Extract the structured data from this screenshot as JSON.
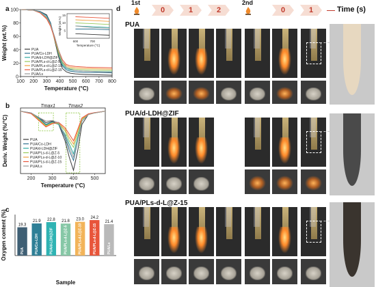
{
  "panel_labels": {
    "a": "a",
    "b": "b",
    "c": "c",
    "d": "d"
  },
  "panel_a": {
    "ylabel": "Weight (wt.%)",
    "xlabel": "Temperature (°C)",
    "yticks": [
      "0",
      "20",
      "40",
      "60",
      "80",
      "100"
    ],
    "xticks": [
      "100",
      "200",
      "300",
      "400",
      "500",
      "600",
      "700",
      "800"
    ],
    "legend": [
      "PUA",
      "PUA/Co-LDH",
      "PUA/d-LDH@ZIF",
      "PUA/PLs-d-L@Z-5",
      "PUA/PLs-d-L@Z-10",
      "PUA/PLs-d-L@Z-15",
      "PUA/Ls"
    ],
    "inset": {
      "ylabel": "Weight (wt.%)",
      "xlabel": "Temperature (°C)",
      "xticks": [
        "600",
        "700"
      ],
      "yticks": [
        "5",
        "10",
        "15"
      ]
    }
  },
  "panel_b": {
    "ylabel": "Deriv. Weight (%/°C)",
    "xlabel": "Temperature (°C)",
    "xticks": [
      "200",
      "300",
      "400",
      "500"
    ],
    "annotations": [
      "Tmax1",
      "Tmax2"
    ],
    "legend": [
      "PUA",
      "PUA/Co-LDH",
      "PUA/d-LDH@ZIF",
      "PUA/PLs-d-L@Z-5",
      "PUA/PLs-d-L@Z-10",
      "PUA/PLs-d-L@Z-15",
      "PUA/Ls"
    ]
  },
  "panel_d": {
    "round1": "1st",
    "round2": "2nd",
    "times1": [
      "0",
      "1",
      "2"
    ],
    "times2": [
      "0",
      "1"
    ],
    "time_label": "Time (s)",
    "rows": [
      "PUA",
      "PUA/d-LDH@ZIF",
      "PUA/PLs-d-L@Z-15"
    ]
  },
  "chart_data": [
    {
      "type": "line",
      "title": "",
      "xlabel": "Temperature (°C)",
      "ylabel": "Weight (wt.%)",
      "xlim": [
        100,
        800
      ],
      "ylim": [
        0,
        100
      ],
      "x": [
        100,
        200,
        250,
        300,
        330,
        360,
        390,
        420,
        450,
        480,
        520,
        600,
        700,
        800
      ],
      "series": [
        {
          "name": "PUA",
          "color": "#3a3a3a",
          "values": [
            100,
            99,
            97,
            92,
            80,
            55,
            30,
            12,
            7,
            5,
            4,
            3,
            2.5,
            2
          ]
        },
        {
          "name": "PUA/Co-LDH",
          "color": "#2e6f8e",
          "values": [
            100,
            99,
            97,
            91,
            80,
            58,
            34,
            16,
            10,
            8,
            7,
            6,
            6,
            5.5
          ]
        },
        {
          "name": "PUA/d-LDH@ZIF",
          "color": "#2aa8a0",
          "values": [
            100,
            99,
            96,
            89,
            78,
            57,
            35,
            18,
            12,
            10,
            9,
            8,
            7.5,
            7
          ]
        },
        {
          "name": "PUA/PLs-d-L@Z-5",
          "color": "#98c95a",
          "values": [
            100,
            99,
            96,
            88,
            77,
            56,
            36,
            20,
            14,
            12,
            11,
            10,
            9.5,
            9
          ]
        },
        {
          "name": "PUA/PLs-d-L@Z-10",
          "color": "#f0a040",
          "values": [
            100,
            99,
            95,
            87,
            76,
            57,
            38,
            22,
            16,
            14,
            13,
            12,
            11.5,
            11
          ]
        },
        {
          "name": "PUA/PLs-d-L@Z-15",
          "color": "#e8553a",
          "values": [
            100,
            99,
            95,
            86,
            75,
            57,
            40,
            25,
            18,
            16,
            15,
            14,
            13.5,
            13
          ]
        },
        {
          "name": "PUA/Ls",
          "color": "#9a9a9a",
          "values": [
            100,
            99,
            96,
            88,
            78,
            60,
            40,
            22,
            14,
            11,
            9,
            8,
            7,
            6.5
          ]
        }
      ]
    },
    {
      "type": "line",
      "title": "",
      "xlabel": "Temperature (°C)",
      "ylabel": "Deriv. Weight (%/°C)",
      "xlim": [
        150,
        550
      ],
      "x": [
        150,
        200,
        240,
        270,
        300,
        330,
        360,
        380,
        400,
        420,
        440,
        470,
        500,
        550
      ],
      "series": [
        {
          "name": "PUA",
          "color": "#3a3a3a",
          "values": [
            0,
            -0.05,
            -0.2,
            -0.35,
            -0.3,
            -0.4,
            -0.9,
            -1.4,
            -1.8,
            -1.2,
            -0.4,
            -0.1,
            -0.05,
            0
          ]
        },
        {
          "name": "PUA/Co-LDH",
          "color": "#2e6f8e",
          "values": [
            0,
            -0.05,
            -0.22,
            -0.4,
            -0.32,
            -0.4,
            -0.8,
            -1.2,
            -1.5,
            -0.9,
            -0.3,
            -0.1,
            -0.05,
            0
          ]
        },
        {
          "name": "PUA/d-LDH@ZIF",
          "color": "#2aa8a0",
          "values": [
            0,
            -0.06,
            -0.25,
            -0.42,
            -0.34,
            -0.4,
            -0.7,
            -1.0,
            -1.3,
            -0.8,
            -0.3,
            -0.1,
            -0.05,
            0
          ]
        },
        {
          "name": "PUA/PLs-d-L@Z-5",
          "color": "#98c95a",
          "values": [
            0,
            -0.06,
            -0.26,
            -0.44,
            -0.35,
            -0.38,
            -0.6,
            -0.9,
            -1.1,
            -0.7,
            -0.25,
            -0.1,
            -0.05,
            0
          ]
        },
        {
          "name": "PUA/PLs-d-L@Z-10",
          "color": "#f0a040",
          "values": [
            0,
            -0.07,
            -0.28,
            -0.46,
            -0.36,
            -0.36,
            -0.55,
            -0.8,
            -1.0,
            -0.6,
            -0.22,
            -0.1,
            -0.05,
            0
          ]
        },
        {
          "name": "PUA/PLs-d-L@Z-15",
          "color": "#e8553a",
          "values": [
            0,
            -0.07,
            -0.3,
            -0.48,
            -0.38,
            -0.34,
            -0.5,
            -0.7,
            -0.9,
            -0.55,
            -0.2,
            -0.08,
            -0.04,
            0
          ]
        },
        {
          "name": "PUA/Ls",
          "color": "#9a9a9a",
          "values": [
            0,
            -0.05,
            -0.2,
            -0.3,
            -0.28,
            -0.35,
            -0.75,
            -1.1,
            -1.4,
            -0.9,
            -0.3,
            -0.1,
            -0.05,
            0
          ]
        }
      ]
    },
    {
      "type": "bar",
      "title": "",
      "xlabel": "Sample",
      "ylabel": "Oxygen content (%)",
      "ylim": [
        0,
        26
      ],
      "categories": [
        "PUA",
        "PUA/Co-LDH",
        "PUA/d-LDH@ZIF",
        "PUA/PLs-d-L@Z-5",
        "PUA/PLs-d-L@Z-10",
        "PUA/PLs-d-L@Z-15",
        "PUA/Ls"
      ],
      "values": [
        19.3,
        21.9,
        22.8,
        21.8,
        23.0,
        24.2,
        21.4
      ],
      "value_labels": [
        "19.3",
        "21.9",
        "22.8",
        "21.8",
        "23.0",
        "24.2",
        "21.4"
      ],
      "colors": [
        "#3f5f74",
        "#2e7f96",
        "#2fb3b3",
        "#86c7a6",
        "#f2b45a",
        "#e8553a",
        "#b9b9b9"
      ]
    }
  ]
}
